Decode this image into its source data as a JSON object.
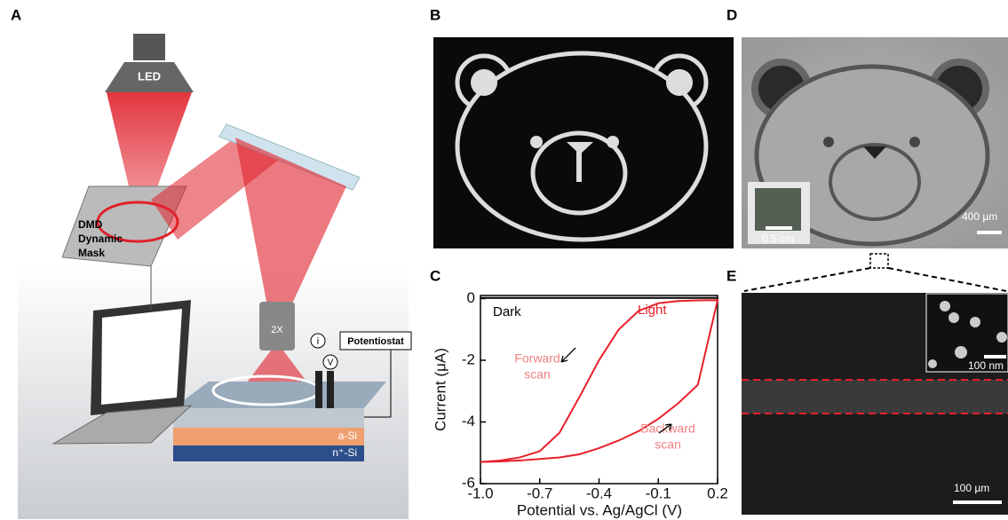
{
  "panels": {
    "a": "A",
    "b": "B",
    "c": "C",
    "d": "D",
    "e": "E"
  },
  "schematic": {
    "led": "LED",
    "dmd": [
      "DMD",
      "Dynamic",
      "Mask"
    ],
    "objective": "2X",
    "potentiostat": "Potentiostat",
    "current": "i",
    "voltage": "V",
    "layer_top": "a-Si",
    "layer_bottom": "n⁺-Si"
  },
  "optical_image": {
    "inset_scale": "0.5 cm",
    "scale": "400 µm"
  },
  "sem_image": {
    "inset_scale": "100 nm",
    "scale": "100 µm"
  },
  "chart_data": {
    "type": "line",
    "x_label": "Potential vs. Ag/AgCl (V)",
    "y_label": "Current (μA)",
    "xlim": [
      -1.0,
      0.2
    ],
    "ylim": [
      -6,
      0.1
    ],
    "xticks": [
      {
        "value": -1.0,
        "label": "-1.0"
      },
      {
        "value": -0.7,
        "label": "-0.7"
      },
      {
        "value": -0.4,
        "label": "-0.4"
      },
      {
        "value": -0.1,
        "label": "-0.1"
      },
      0.2
    ],
    "yticks": [
      0,
      -2,
      -4,
      -6
    ],
    "series": [
      {
        "name": "Dark",
        "color": "#000000",
        "x": [
          -1.0,
          -0.7,
          -0.4,
          -0.1,
          0.2
        ],
        "values": [
          0.02,
          0.02,
          0.02,
          0.02,
          0.02
        ]
      },
      {
        "name": "Light",
        "color": "#e8202a",
        "x": [
          -1.0,
          -0.9,
          -0.8,
          -0.7,
          -0.6,
          -0.5,
          -0.4,
          -0.3,
          -0.2,
          -0.1,
          0.0,
          0.1,
          0.2,
          0.1,
          0.0,
          -0.1,
          -0.2,
          -0.3,
          -0.4,
          -0.5,
          -0.6,
          -0.7,
          -0.8,
          -0.9,
          -1.0
        ],
        "values": [
          -5.3,
          -5.25,
          -5.15,
          -4.95,
          -4.35,
          -3.2,
          -2.0,
          -1.0,
          -0.4,
          -0.15,
          -0.08,
          -0.06,
          -0.05,
          -2.8,
          -3.4,
          -3.9,
          -4.3,
          -4.6,
          -4.85,
          -5.05,
          -5.15,
          -5.2,
          -5.25,
          -5.28,
          -5.3
        ]
      }
    ],
    "annotations": [
      [
        "Forward",
        "scan"
      ],
      [
        "Backward",
        "scan"
      ]
    ]
  }
}
